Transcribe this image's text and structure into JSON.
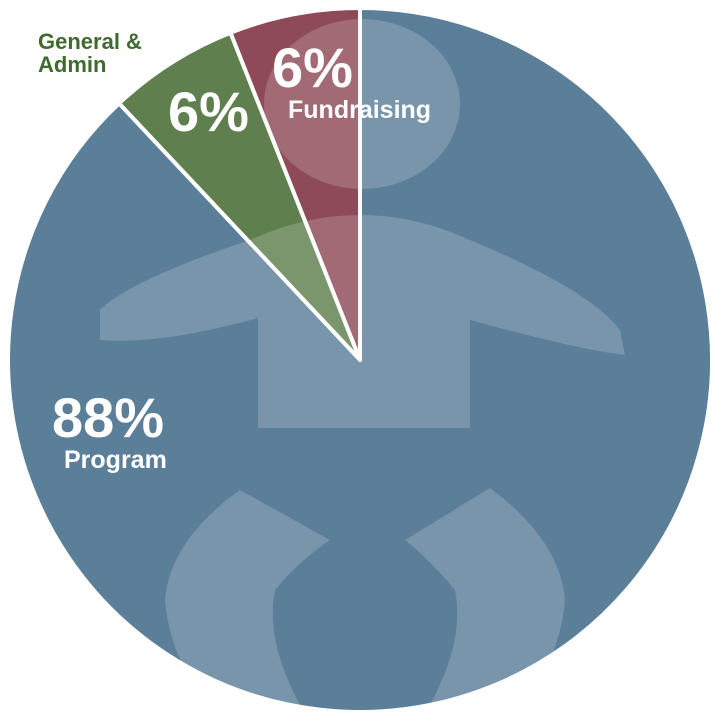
{
  "chart_data": {
    "type": "pie",
    "categories": [
      "Fundraising",
      "General & Admin",
      "Program"
    ],
    "values": [
      6,
      6,
      88
    ],
    "value_labels": [
      "6%",
      "6%",
      "88%"
    ],
    "colors": [
      "#8e4a56",
      "#5f7f4e",
      "#5b7e99"
    ]
  }
}
